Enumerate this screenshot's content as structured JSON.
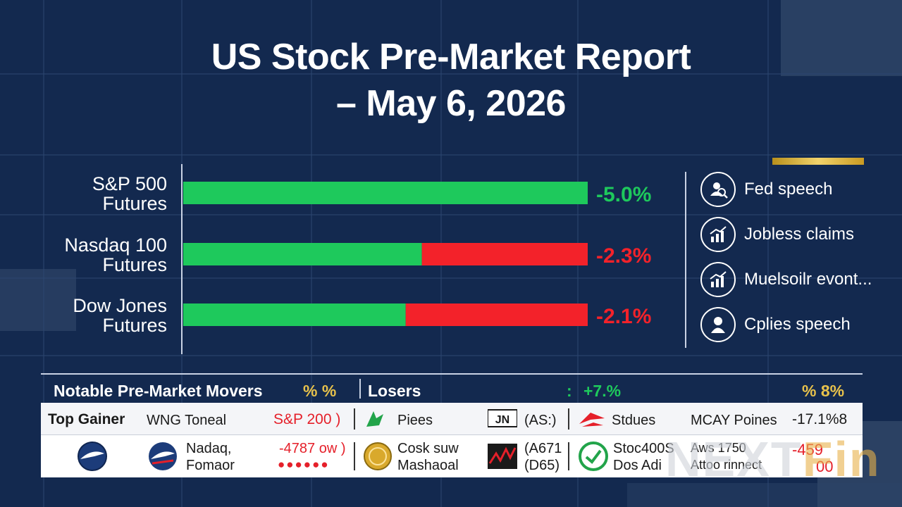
{
  "title": {
    "line1": "US Stock Pre-Market Report",
    "line2": "– May 6, 2026"
  },
  "colors": {
    "background": "#13294f",
    "gain": "#1ec95c",
    "loss": "#f3222a",
    "gold": "#e0b93c"
  },
  "chart_data": {
    "type": "bar",
    "categories": [
      [
        "S&P 500",
        "Futures"
      ],
      [
        "Nasdaq 100",
        "Futures"
      ],
      [
        "Dow Jones",
        "Futures"
      ]
    ],
    "value_labels": [
      "-5.0%",
      "-2.3%",
      "-2.1%"
    ],
    "value_label_colors": [
      "#1ec95c",
      "#f3222a",
      "#f3222a"
    ],
    "green_fraction": [
      1.0,
      0.59,
      0.55
    ],
    "legend": "none",
    "grid": false
  },
  "events": [
    {
      "label": "Fed speech",
      "icon": "person-search-icon"
    },
    {
      "label": "Jobless claims",
      "icon": "chart-up-icon"
    },
    {
      "label": "Muelsoilr evont...",
      "icon": "chart-up-icon"
    },
    {
      "label": "Cplies speech",
      "icon": "person-icon"
    }
  ],
  "movers": {
    "header": {
      "title": "Notable Pre-Market Movers",
      "pct1": "% %",
      "losers": "Losers",
      "colon": ":",
      "plus": "+7.%",
      "pct2": "% 8%"
    },
    "row1": {
      "top_gainer": "Top Gainer",
      "name1": "WNG Toneal",
      "val1": "S&P 200 )",
      "name2": "Piees",
      "tag": "(AS:)",
      "name3": "Stdues",
      "name4": "MCAY Poines",
      "val2": "-17.1%8"
    },
    "row2": {
      "c1a": "Nadaq,",
      "c1b": "Fomaor",
      "v1": "-4787 ow )",
      "dots1": "●●●●●●",
      "c2a": "Cosk suw",
      "c2b": "Mashaoal",
      "c3a": "(A671",
      "c3b": "(D65)",
      "c4a": "Stoc400S",
      "c4b": "Dos Adi",
      "c5a": "Aws 1750",
      "c5b": "Attoo rinnect",
      "v2": "-459",
      "v2b": "00"
    }
  },
  "logo": {
    "main": "NEXT",
    "tail": "Fin"
  }
}
